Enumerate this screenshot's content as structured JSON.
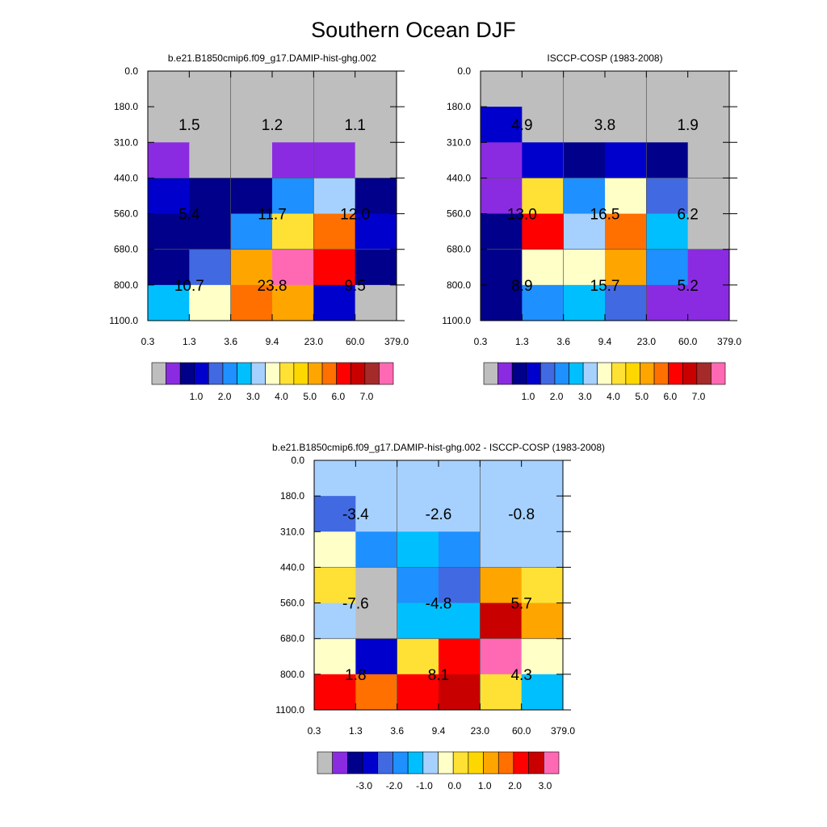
{
  "title": "Southern Ocean DJF",
  "colors": {
    "gray": "#BEBEBE",
    "purple": "#8A2BE2",
    "navy": "#00008B",
    "blue": "#0000CD",
    "royal": "#4169E1",
    "dodger": "#1E90FF",
    "deepsky": "#00BFFF",
    "lightsky": "#A6D1FF",
    "cream": "#FFFFC8",
    "yellow": "#FFE135",
    "gold": "#FFD700",
    "orange": "#FFA500",
    "darkorange": "#FF7000",
    "red": "#FF0000",
    "crimson": "#C80000",
    "brown": "#A52A2A",
    "pink": "#FF69B4"
  },
  "chart_data": [
    {
      "type": "heatmap",
      "title": "b.e21.B1850cmip6.f09_g17.DAMIP-hist-ghg.002",
      "x_ticks": [
        "0.3",
        "1.3",
        "3.6",
        "9.4",
        "23.0",
        "60.0",
        "379.0"
      ],
      "y_ticks": [
        "0.0",
        "180.0",
        "310.0",
        "440.0",
        "560.0",
        "680.0",
        "800.0",
        "1100.0"
      ],
      "cells": [
        [
          "gray",
          "gray",
          "gray",
          "gray",
          "gray",
          "gray"
        ],
        [
          "gray",
          "gray",
          "gray",
          "gray",
          "gray",
          "gray"
        ],
        [
          "purple",
          "gray",
          "gray",
          "purple",
          "purple",
          "gray"
        ],
        [
          "blue",
          "navy",
          "navy",
          "dodger",
          "lightsky",
          "navy"
        ],
        [
          "navy",
          "navy",
          "dodger",
          "yellow",
          "darkorange",
          "blue"
        ],
        [
          "navy",
          "royal",
          "orange",
          "pink",
          "red",
          "navy"
        ],
        [
          "deepsky",
          "cream",
          "darkorange",
          "orange",
          "blue",
          "gray"
        ]
      ],
      "annotations": [
        [
          "1.5",
          "1.2",
          "1.1"
        ],
        [
          "5.4",
          "11.7",
          "12.0"
        ],
        [
          "10.7",
          "23.8",
          "9.5"
        ]
      ],
      "colorbar": {
        "colors": [
          "gray",
          "purple",
          "navy",
          "blue",
          "royal",
          "dodger",
          "deepsky",
          "lightsky",
          "cream",
          "yellow",
          "gold",
          "orange",
          "darkorange",
          "red",
          "crimson",
          "brown",
          "pink"
        ],
        "labels": [
          "1.0",
          "2.0",
          "3.0",
          "4.0",
          "5.0",
          "6.0",
          "7.0"
        ]
      }
    },
    {
      "type": "heatmap",
      "title": "ISCCP-COSP (1983-2008)",
      "x_ticks": [
        "0.3",
        "1.3",
        "3.6",
        "9.4",
        "23.0",
        "60.0",
        "379.0"
      ],
      "y_ticks": [
        "0.0",
        "180.0",
        "310.0",
        "440.0",
        "560.0",
        "680.0",
        "800.0",
        "1100.0"
      ],
      "cells": [
        [
          "gray",
          "gray",
          "gray",
          "gray",
          "gray",
          "gray"
        ],
        [
          "blue",
          "gray",
          "gray",
          "gray",
          "gray",
          "gray"
        ],
        [
          "purple",
          "blue",
          "navy",
          "blue",
          "navy",
          "gray"
        ],
        [
          "purple",
          "yellow",
          "dodger",
          "cream",
          "royal",
          "gray"
        ],
        [
          "navy",
          "red",
          "lightsky",
          "darkorange",
          "deepsky",
          "gray"
        ],
        [
          "navy",
          "cream",
          "cream",
          "orange",
          "dodger",
          "purple"
        ],
        [
          "navy",
          "dodger",
          "deepsky",
          "royal",
          "purple",
          "purple"
        ]
      ],
      "annotations": [
        [
          "4.9",
          "3.8",
          "1.9"
        ],
        [
          "13.0",
          "16.5",
          "6.2"
        ],
        [
          "8.9",
          "15.7",
          "5.2"
        ]
      ],
      "colorbar": {
        "colors": [
          "gray",
          "purple",
          "navy",
          "blue",
          "royal",
          "dodger",
          "deepsky",
          "lightsky",
          "cream",
          "yellow",
          "gold",
          "orange",
          "darkorange",
          "red",
          "crimson",
          "brown",
          "pink"
        ],
        "labels": [
          "1.0",
          "2.0",
          "3.0",
          "4.0",
          "5.0",
          "6.0",
          "7.0"
        ]
      }
    },
    {
      "type": "heatmap",
      "title": "b.e21.B1850cmip6.f09_g17.DAMIP-hist-ghg.002 - ISCCP-COSP (1983-2008)",
      "x_ticks": [
        "0.3",
        "1.3",
        "3.6",
        "9.4",
        "23.0",
        "60.0",
        "379.0"
      ],
      "y_ticks": [
        "0.0",
        "180.0",
        "310.0",
        "440.0",
        "560.0",
        "680.0",
        "800.0",
        "1100.0"
      ],
      "cells": [
        [
          "lightsky",
          "lightsky",
          "lightsky",
          "lightsky",
          "lightsky",
          "lightsky"
        ],
        [
          "royal",
          "lightsky",
          "lightsky",
          "lightsky",
          "lightsky",
          "lightsky"
        ],
        [
          "cream",
          "dodger",
          "deepsky",
          "dodger",
          "lightsky",
          "lightsky"
        ],
        [
          "yellow",
          "gray",
          "dodger",
          "royal",
          "orange",
          "yellow"
        ],
        [
          "lightsky",
          "gray",
          "deepsky",
          "deepsky",
          "crimson",
          "orange"
        ],
        [
          "cream",
          "blue",
          "yellow",
          "red",
          "pink",
          "cream"
        ],
        [
          "red",
          "darkorange",
          "red",
          "crimson",
          "yellow",
          "deepsky"
        ]
      ],
      "annotations": [
        [
          "-3.4",
          "-2.6",
          "-0.8"
        ],
        [
          "-7.6",
          "-4.8",
          "5.7"
        ],
        [
          "1.8",
          "8.1",
          "4.3"
        ]
      ],
      "colorbar": {
        "colors": [
          "gray",
          "purple",
          "navy",
          "blue",
          "royal",
          "dodger",
          "deepsky",
          "lightsky",
          "cream",
          "yellow",
          "gold",
          "orange",
          "darkorange",
          "red",
          "crimson",
          "pink"
        ],
        "labels": [
          "-3.0",
          "-2.0",
          "-1.0",
          "0.0",
          "1.0",
          "2.0",
          "3.0"
        ]
      }
    }
  ]
}
